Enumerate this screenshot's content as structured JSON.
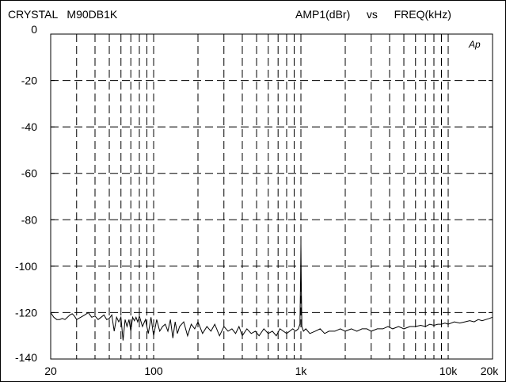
{
  "header": {
    "left": "CRYSTAL   M90DB1K",
    "right": "AMP1(dBr)   vs   FREQ(kHz)"
  },
  "logo": "Ap",
  "chart_data": {
    "type": "line",
    "title": "CRYSTAL   M90DB1K",
    "xlabel": "FREQ(kHz)",
    "ylabel": "AMP1(dBr)",
    "xscale": "log",
    "xlim": [
      20,
      20000
    ],
    "ylim": [
      -140,
      0
    ],
    "grid": true,
    "grid_style": "dashed",
    "y_ticks": [
      0,
      -20,
      -40,
      -60,
      -80,
      -100,
      -120,
      -140
    ],
    "y_tick_labels": [
      "0",
      "-20",
      "-40",
      "-60",
      "-80",
      "-100",
      "-120",
      "-140"
    ],
    "x_ticks": [
      20,
      100,
      1000,
      10000,
      20000
    ],
    "x_tick_labels": [
      "20",
      "100",
      "1k",
      "10k",
      "20k"
    ],
    "x_grid": [
      30,
      40,
      50,
      60,
      70,
      80,
      90,
      100,
      200,
      300,
      400,
      500,
      600,
      700,
      800,
      900,
      1000,
      2000,
      3000,
      4000,
      5000,
      6000,
      7000,
      8000,
      9000,
      10000
    ],
    "line_color": "#000000",
    "series": [
      {
        "x": [
          20,
          21,
          22,
          23,
          24,
          25,
          26,
          27,
          28,
          29,
          30,
          32,
          34,
          36,
          38,
          40,
          42,
          44,
          46,
          48,
          50,
          52,
          54,
          56,
          58,
          60,
          62,
          64,
          66,
          68,
          70,
          72,
          74,
          76,
          78,
          80,
          84,
          88,
          92,
          96,
          100,
          105,
          110,
          115,
          120,
          125,
          130,
          135,
          140,
          145,
          150,
          160,
          170,
          180,
          190,
          200,
          215,
          230,
          245,
          260,
          280,
          300,
          320,
          340,
          360,
          380,
          400,
          430,
          460,
          490,
          520,
          560,
          600,
          640,
          680,
          720,
          760,
          800,
          840,
          880,
          920,
          960,
          985,
          995,
          1000,
          1005,
          1015,
          1040,
          1080,
          1150,
          1250,
          1350,
          1450,
          1550,
          1700,
          1850,
          2000,
          2200,
          2400,
          2600,
          2800,
          3000,
          3300,
          3600,
          3900,
          4200,
          4600,
          5000,
          5500,
          6000,
          6500,
          7000,
          7500,
          8000,
          8500,
          9000,
          9500,
          10000,
          11000,
          12000,
          13000,
          14000,
          15000,
          16000,
          17000,
          18000,
          19000,
          20000
        ],
        "y": [
          -120,
          -122,
          -123,
          -123,
          -122.5,
          -123,
          -122,
          -121,
          -120.5,
          -121.5,
          -123,
          -122,
          -121,
          -120,
          -122,
          -121.5,
          -123,
          -122,
          -121,
          -123,
          -122.5,
          -121,
          -128,
          -122,
          -124,
          -122,
          -132,
          -123,
          -126,
          -123,
          -128,
          -122,
          -123.5,
          -122,
          -124,
          -121.5,
          -126,
          -123,
          -129,
          -122,
          -130,
          -123,
          -128,
          -126,
          -125,
          -128,
          -123,
          -131,
          -124,
          -129,
          -126,
          -124,
          -130,
          -125,
          -127,
          -124,
          -129,
          -126,
          -128,
          -125,
          -130,
          -126,
          -128,
          -127,
          -129,
          -126,
          -130,
          -127,
          -129,
          -128,
          -130,
          -127,
          -129,
          -128,
          -130,
          -127,
          -128,
          -129,
          -128,
          -127,
          -128,
          -127,
          -125,
          -105,
          -90.5,
          -105,
          -126,
          -128,
          -127,
          -129,
          -128,
          -127,
          -129,
          -128,
          -128,
          -127,
          -128,
          -127,
          -128,
          -127,
          -127,
          -128,
          -127,
          -127,
          -126,
          -127,
          -126,
          -127,
          -126,
          -126,
          -125.5,
          -126,
          -125,
          -125.5,
          -125,
          -125,
          -124.5,
          -125,
          -124,
          -124.5,
          -124,
          -123.5,
          -124,
          -123,
          -123.5,
          -123,
          -122.5,
          -122
        ]
      }
    ]
  }
}
